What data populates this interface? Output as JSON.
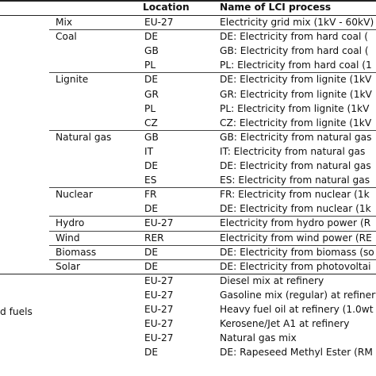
{
  "table": {
    "headers": {
      "location": "Location",
      "lci_process": "Name of LCI process"
    },
    "groups": [
      {
        "label": "Mix",
        "rows": [
          {
            "location": "EU-27",
            "process": "Electricity grid mix (1kV - 60kV)"
          }
        ]
      },
      {
        "label": "Coal",
        "rows": [
          {
            "location": "DE",
            "process": "DE: Electricity from hard coal ("
          },
          {
            "location": "GB",
            "process": "GB: Electricity from hard coal ("
          },
          {
            "location": "PL",
            "process": "PL: Electricity from hard coal (1"
          }
        ]
      },
      {
        "label": "Lignite",
        "rows": [
          {
            "location": "DE",
            "process": "DE: Electricity from lignite (1kV"
          },
          {
            "location": "GR",
            "process": "GR: Electricity from lignite (1kV"
          },
          {
            "location": "PL",
            "process": "PL: Electricity from lignite (1kV"
          },
          {
            "location": "CZ",
            "process": "CZ: Electricity from lignite (1kV"
          }
        ]
      },
      {
        "label": "Natural gas",
        "rows": [
          {
            "location": "GB",
            "process": "GB: Electricity from natural gas"
          },
          {
            "location": "IT",
            "process": "IT: Electricity from natural gas"
          },
          {
            "location": "DE",
            "process": "DE: Electricity from natural gas"
          },
          {
            "location": "ES",
            "process": "ES: Electricity from natural gas"
          }
        ]
      },
      {
        "label": "Nuclear",
        "rows": [
          {
            "location": "FR",
            "process": "FR: Electricity from nuclear (1k"
          },
          {
            "location": "DE",
            "process": "DE: Electricity from nuclear (1k"
          }
        ]
      },
      {
        "label": "Hydro",
        "rows": [
          {
            "location": "EU-27",
            "process": "Electricity from hydro power (R"
          }
        ]
      },
      {
        "label": "Wind",
        "rows": [
          {
            "location": "RER",
            "process": "Electricity from wind power (RE"
          }
        ]
      },
      {
        "label": "Biomass",
        "rows": [
          {
            "location": "DE",
            "process": "DE: Electricity from biomass (so"
          }
        ]
      },
      {
        "label": "Solar",
        "rows": [
          {
            "location": "DE",
            "process": "DE: Electricity from photovoltai"
          }
        ]
      }
    ],
    "fuels_label": "d fuels",
    "fuel_rows": [
      {
        "location": "EU-27",
        "process": "Diesel mix at refinery"
      },
      {
        "location": "EU-27",
        "process": "Gasoline mix (regular) at refinery"
      },
      {
        "location": "EU-27",
        "process": "Heavy fuel oil at refinery (1.0wt"
      },
      {
        "location": "EU-27",
        "process": "Kerosene/Jet A1 at refinery"
      },
      {
        "location": "EU-27",
        "process": "Natural gas mix"
      },
      {
        "location": "DE",
        "process": "DE: Rapeseed Methyl Ester (RM"
      }
    ]
  }
}
